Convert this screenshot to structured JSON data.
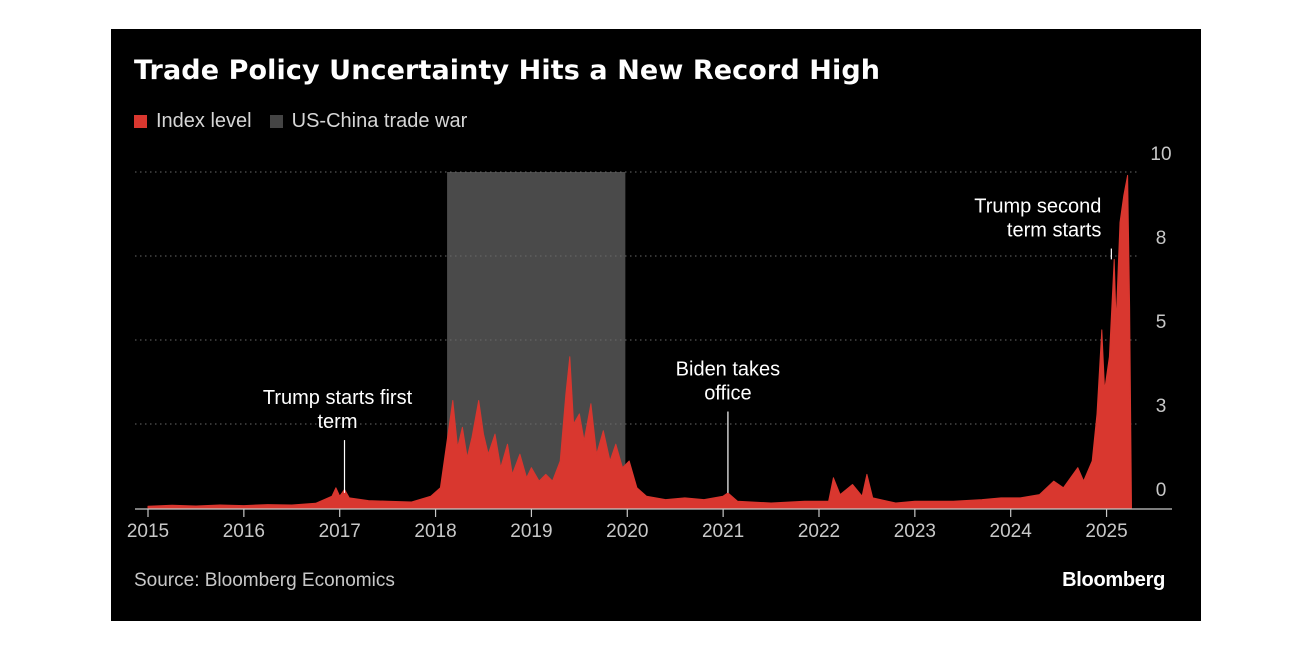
{
  "chart_data": {
    "type": "area",
    "title": "Trade Policy Uncertainty Hits a New Record High",
    "source": "Source: Bloomberg Economics",
    "brand": "Bloomberg",
    "legend": [
      {
        "label": "Index level",
        "color": "#d9372f"
      },
      {
        "label": "US-China trade war",
        "color": "#444444"
      }
    ],
    "series_color": "#d9372f",
    "shade_color": "#4a4a4a",
    "xlim": [
      2015.0,
      2026.1
    ],
    "ylim": [
      0,
      10
    ],
    "yticks": [
      {
        "value": 0,
        "label": "0"
      },
      {
        "value": 2.5,
        "label": "3"
      },
      {
        "value": 5,
        "label": "5"
      },
      {
        "value": 7.5,
        "label": "8"
      },
      {
        "value": 10,
        "label": "10"
      }
    ],
    "xticks": [
      {
        "value": 2015,
        "label": "2015"
      },
      {
        "value": 2016,
        "label": "2016"
      },
      {
        "value": 2017,
        "label": "2017"
      },
      {
        "value": 2018,
        "label": "2018"
      },
      {
        "value": 2019,
        "label": "2019"
      },
      {
        "value": 2020,
        "label": "2020"
      },
      {
        "value": 2021,
        "label": "2021"
      },
      {
        "value": 2022,
        "label": "2022"
      },
      {
        "value": 2023,
        "label": "2023"
      },
      {
        "value": 2024,
        "label": "2024"
      },
      {
        "value": 2025,
        "label": "2025"
      }
    ],
    "shaded_regions": [
      {
        "name": "US-China trade war",
        "start": 2018.12,
        "end": 2019.98
      }
    ],
    "annotations": [
      {
        "lines": [
          "Trump starts first",
          "term"
        ],
        "x": 2017.05,
        "y": 0.45,
        "text_y": 2.2
      },
      {
        "lines": [
          "Biden takes",
          "office"
        ],
        "x": 2021.05,
        "y": 0.45,
        "text_y": 3.05
      },
      {
        "lines": [
          "Trump second",
          "term starts"
        ],
        "x": 2025.05,
        "y": 7.4,
        "text_y": 7.9
      }
    ],
    "series": [
      {
        "values": [
          [
            2015.0,
            0.05
          ],
          [
            2015.25,
            0.08
          ],
          [
            2015.5,
            0.06
          ],
          [
            2015.75,
            0.09
          ],
          [
            2016.0,
            0.07
          ],
          [
            2016.25,
            0.1
          ],
          [
            2016.5,
            0.09
          ],
          [
            2016.75,
            0.14
          ],
          [
            2016.92,
            0.35
          ],
          [
            2016.96,
            0.6
          ],
          [
            2017.0,
            0.35
          ],
          [
            2017.05,
            0.55
          ],
          [
            2017.1,
            0.3
          ],
          [
            2017.3,
            0.22
          ],
          [
            2017.5,
            0.2
          ],
          [
            2017.75,
            0.18
          ],
          [
            2017.95,
            0.35
          ],
          [
            2018.05,
            0.6
          ],
          [
            2018.12,
            2.0
          ],
          [
            2018.18,
            3.2
          ],
          [
            2018.23,
            1.8
          ],
          [
            2018.28,
            2.4
          ],
          [
            2018.33,
            1.5
          ],
          [
            2018.38,
            2.1
          ],
          [
            2018.45,
            3.2
          ],
          [
            2018.5,
            2.2
          ],
          [
            2018.55,
            1.6
          ],
          [
            2018.62,
            2.2
          ],
          [
            2018.68,
            1.2
          ],
          [
            2018.75,
            1.9
          ],
          [
            2018.8,
            1.0
          ],
          [
            2018.88,
            1.6
          ],
          [
            2018.95,
            0.9
          ],
          [
            2019.0,
            1.2
          ],
          [
            2019.08,
            0.8
          ],
          [
            2019.15,
            1.0
          ],
          [
            2019.22,
            0.8
          ],
          [
            2019.3,
            1.4
          ],
          [
            2019.36,
            3.4
          ],
          [
            2019.4,
            4.5
          ],
          [
            2019.44,
            2.5
          ],
          [
            2019.5,
            2.8
          ],
          [
            2019.55,
            2.0
          ],
          [
            2019.62,
            3.1
          ],
          [
            2019.68,
            1.6
          ],
          [
            2019.75,
            2.3
          ],
          [
            2019.82,
            1.4
          ],
          [
            2019.88,
            1.9
          ],
          [
            2019.95,
            1.2
          ],
          [
            2020.02,
            1.4
          ],
          [
            2020.1,
            0.6
          ],
          [
            2020.2,
            0.35
          ],
          [
            2020.4,
            0.25
          ],
          [
            2020.6,
            0.3
          ],
          [
            2020.8,
            0.25
          ],
          [
            2021.0,
            0.35
          ],
          [
            2021.05,
            0.45
          ],
          [
            2021.15,
            0.2
          ],
          [
            2021.5,
            0.15
          ],
          [
            2021.85,
            0.2
          ],
          [
            2022.1,
            0.2
          ],
          [
            2022.15,
            0.9
          ],
          [
            2022.22,
            0.4
          ],
          [
            2022.35,
            0.7
          ],
          [
            2022.45,
            0.35
          ],
          [
            2022.5,
            1.0
          ],
          [
            2022.56,
            0.3
          ],
          [
            2022.8,
            0.15
          ],
          [
            2023.0,
            0.2
          ],
          [
            2023.4,
            0.2
          ],
          [
            2023.7,
            0.25
          ],
          [
            2023.9,
            0.3
          ],
          [
            2024.1,
            0.3
          ],
          [
            2024.3,
            0.4
          ],
          [
            2024.45,
            0.8
          ],
          [
            2024.55,
            0.6
          ],
          [
            2024.7,
            1.2
          ],
          [
            2024.76,
            0.8
          ],
          [
            2024.85,
            1.4
          ],
          [
            2024.9,
            2.8
          ],
          [
            2024.95,
            5.3
          ],
          [
            2024.98,
            3.5
          ],
          [
            2025.03,
            4.5
          ],
          [
            2025.08,
            7.4
          ],
          [
            2025.1,
            5.5
          ],
          [
            2025.14,
            8.5
          ],
          [
            2025.18,
            9.3
          ],
          [
            2025.22,
            9.9
          ],
          [
            2025.24,
            6.0
          ],
          [
            2025.26,
            0
          ]
        ]
      }
    ]
  }
}
